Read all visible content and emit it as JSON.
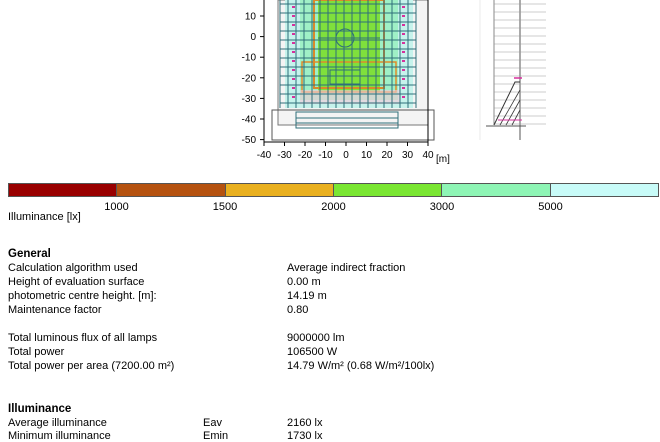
{
  "plot": {
    "y_ticks": [
      "10",
      "0",
      "-10",
      "-20",
      "-30",
      "-40",
      "-50"
    ],
    "x_ticks": [
      "-40",
      "-30",
      "-20",
      "-10",
      "0",
      "10",
      "20",
      "30",
      "40"
    ],
    "x_unit": "[m]"
  },
  "legend": {
    "colors": [
      "#990000",
      "#b5520f",
      "#e9b020",
      "#7ae632",
      "#8ef5b5",
      "#c8fbf8"
    ],
    "ticks": [
      "1000",
      "1500",
      "2000",
      "3000",
      "5000"
    ],
    "caption": "Illuminance [lx]"
  },
  "general": {
    "title": "General",
    "rows": [
      {
        "label": "Calculation algorithm used",
        "value": "Average indirect fraction"
      },
      {
        "label": "Height of evaluation surface",
        "value": "0.00 m"
      },
      {
        "label": "photometric centre height. [m]:",
        "value": "14.19 m"
      },
      {
        "label": "Maintenance factor",
        "value": "0.80"
      }
    ],
    "power_rows": [
      {
        "label": "Total luminous flux of all lamps",
        "value": "9000000 lm"
      },
      {
        "label": "Total power",
        "value": "106500 W"
      },
      {
        "label": "Total power per area (7200.00 m²)",
        "value": "14.79 W/m² (0.68 W/m²/100lx)"
      }
    ]
  },
  "illuminance": {
    "title": "Illuminance",
    "rows": [
      {
        "label": "Average illuminance",
        "symbol": "Eav",
        "value": "2160 lx"
      },
      {
        "label": "Minimum illuminance",
        "symbol": "Emin",
        "value": "1730 lx"
      }
    ]
  }
}
